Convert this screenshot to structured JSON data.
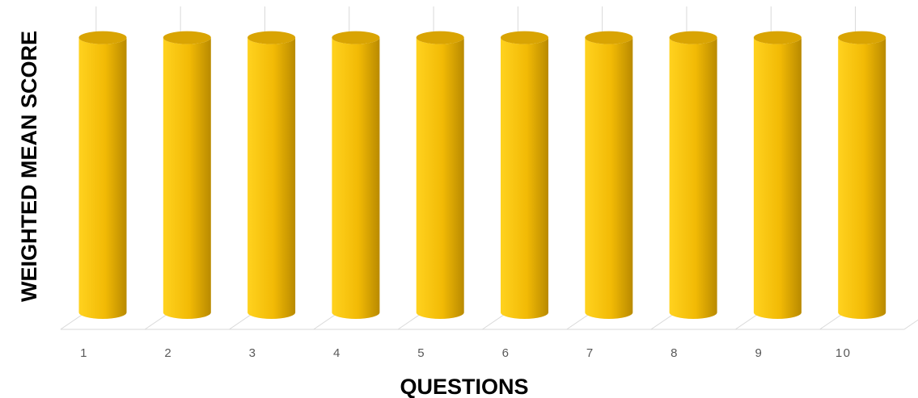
{
  "chart_data": {
    "type": "bar",
    "style": "3d-cylinder",
    "categories": [
      "1",
      "2",
      "3",
      "4",
      "5",
      "6",
      "7",
      "8",
      "9",
      "10"
    ],
    "values": [
      4.8,
      4.8,
      4.8,
      4.8,
      4.8,
      4.8,
      4.8,
      4.8,
      4.8,
      4.8
    ],
    "ylim": [
      0,
      5
    ],
    "xlabel": "QUESTIONS",
    "ylabel": "WEIGHTED MEAN SCORE",
    "grid": true,
    "legend": "none",
    "colors": {
      "bar_light": "#FFD21F",
      "bar_mid": "#F2BA05",
      "bar_dark": "#B98A00",
      "bar_top": "#D9A403",
      "gridline": "#D9D9D9",
      "floor": "#D9D9D9"
    }
  }
}
